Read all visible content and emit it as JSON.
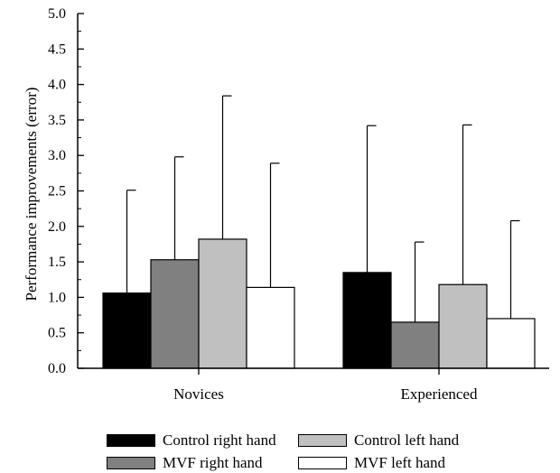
{
  "chart_data": {
    "type": "bar",
    "title": "",
    "xlabel": "",
    "ylabel": "Performance improvements (error)",
    "ylim": [
      0,
      5
    ],
    "yticks": [
      "0.0",
      "0.5",
      "1.0",
      "1.5",
      "2.0",
      "2.5",
      "3.0",
      "3.5",
      "4.0",
      "4.5",
      "5.0"
    ],
    "categories": [
      "Novices",
      "Experienced"
    ],
    "error_bars": "upper",
    "legend_position": "bottom",
    "series": [
      {
        "name": "Control right hand",
        "color": "#000000",
        "values": [
          1.06,
          1.35
        ],
        "errors": [
          1.45,
          2.07
        ]
      },
      {
        "name": "MVF right hand",
        "color": "#808080",
        "values": [
          1.53,
          0.65
        ],
        "errors": [
          1.45,
          1.13
        ]
      },
      {
        "name": "Control left hand",
        "color": "#c0c0c0",
        "values": [
          1.82,
          1.18
        ],
        "errors": [
          2.02,
          2.25
        ]
      },
      {
        "name": "MVF left hand",
        "color": "#ffffff",
        "values": [
          1.14,
          0.7
        ],
        "errors": [
          1.75,
          1.38
        ]
      }
    ],
    "grid": false
  }
}
